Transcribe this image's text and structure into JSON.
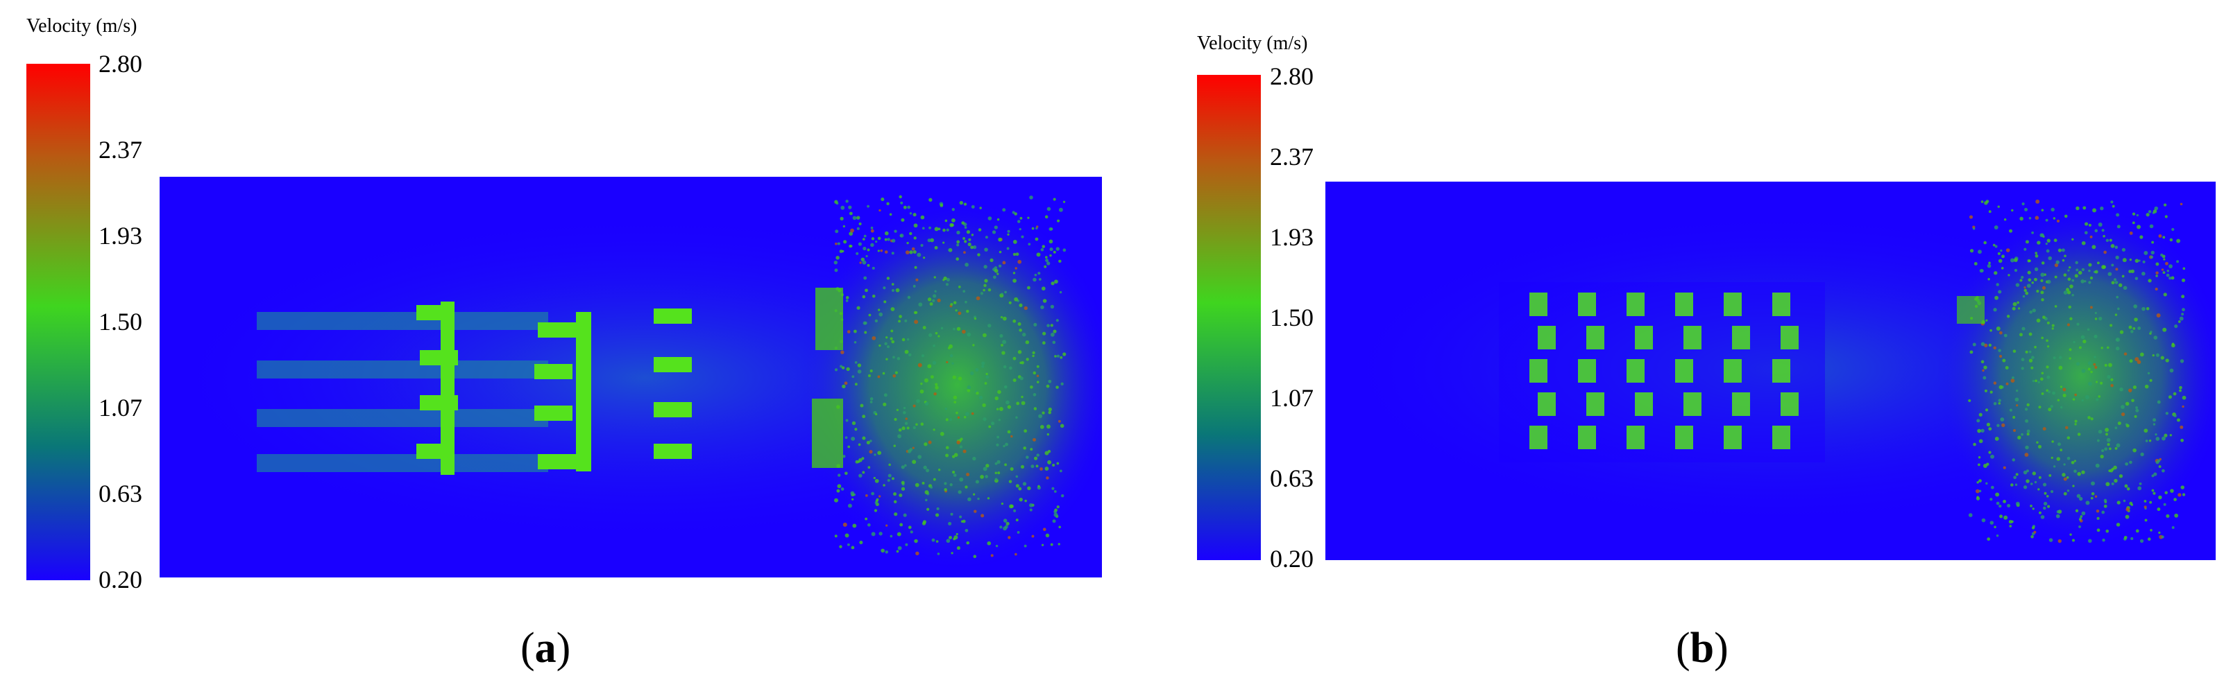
{
  "colorbar": {
    "title": "Velocity (m/s)",
    "ticks": [
      "2.80",
      "2.37",
      "1.93",
      "1.50",
      "1.07",
      "0.63",
      "0.20"
    ],
    "colors": [
      "#ff0000",
      "#b85a12",
      "#3fd51f",
      "#0a7777",
      "#1a00ff"
    ]
  },
  "panels": [
    {
      "id": "a",
      "letter": "a"
    },
    {
      "id": "b",
      "letter": "b"
    }
  ]
}
